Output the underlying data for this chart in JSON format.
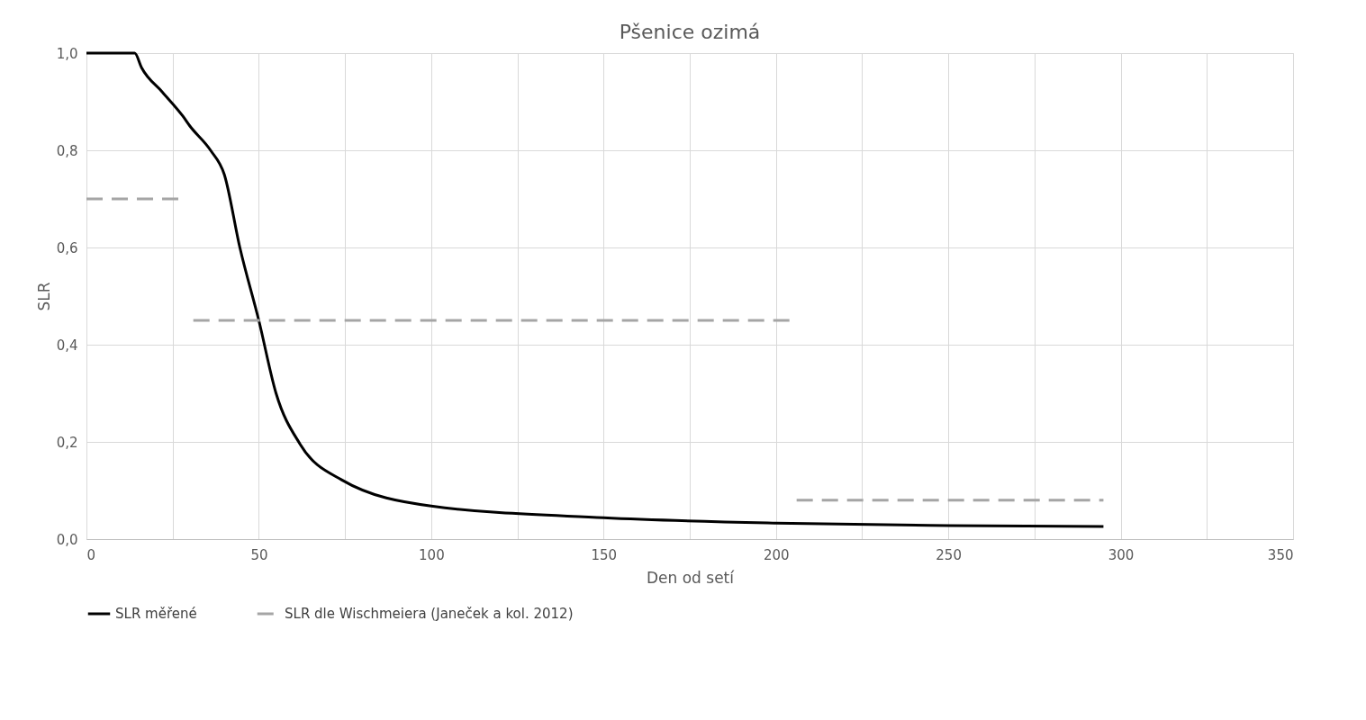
{
  "chart_data": {
    "type": "line",
    "title": "Pšenice ozimá",
    "xlabel": "Den od setí",
    "ylabel": "SLR",
    "xlim": [
      0,
      350
    ],
    "ylim": [
      0,
      1
    ],
    "xticks": [
      0,
      {
        "value": 25,
        "label": null
      },
      50,
      {
        "value": 75,
        "label": null
      },
      100,
      {
        "value": 125,
        "label": null
      },
      150,
      {
        "value": 175,
        "label": null
      },
      200,
      {
        "value": 225,
        "label": null
      },
      250,
      {
        "value": 275,
        "label": null
      },
      300,
      {
        "value": 325,
        "label": null
      },
      350
    ],
    "yticks": [
      {
        "value": 0,
        "label": "0,0"
      },
      {
        "value": 0.2,
        "label": "0,2"
      },
      {
        "value": 0.4,
        "label": "0,4"
      },
      {
        "value": 0.6,
        "label": "0,6"
      },
      {
        "value": 0.8,
        "label": "0,8"
      },
      {
        "value": 1,
        "label": "1,0"
      }
    ],
    "grid": true,
    "legend": "bottom",
    "series": [
      {
        "name": "SLR měřené",
        "color": "#000000",
        "line_style": "solid",
        "x": [
          0,
          14,
          16,
          22,
          28,
          30,
          36,
          40,
          44.5,
          50,
          55,
          62,
          74,
          100,
          150,
          200,
          250,
          295
        ],
        "values": [
          1.0,
          1.0,
          0.97,
          0.92,
          0.87,
          0.85,
          0.8,
          0.75,
          0.6,
          0.45,
          0.3,
          0.195,
          0.122,
          0.068,
          0.044,
          0.033,
          0.028,
          0.026
        ]
      },
      {
        "name": "SLR dle Wischmeiera (Janeček a kol. 2012)",
        "color": "#a5a5a5",
        "line_style": "dashed",
        "x": [
          0,
          29,
          30,
          31,
          205,
          205.5,
          206,
          295
        ],
        "values": [
          0.7,
          0.7,
          null,
          0.45,
          0.45,
          null,
          0.08,
          0.08
        ]
      }
    ]
  }
}
